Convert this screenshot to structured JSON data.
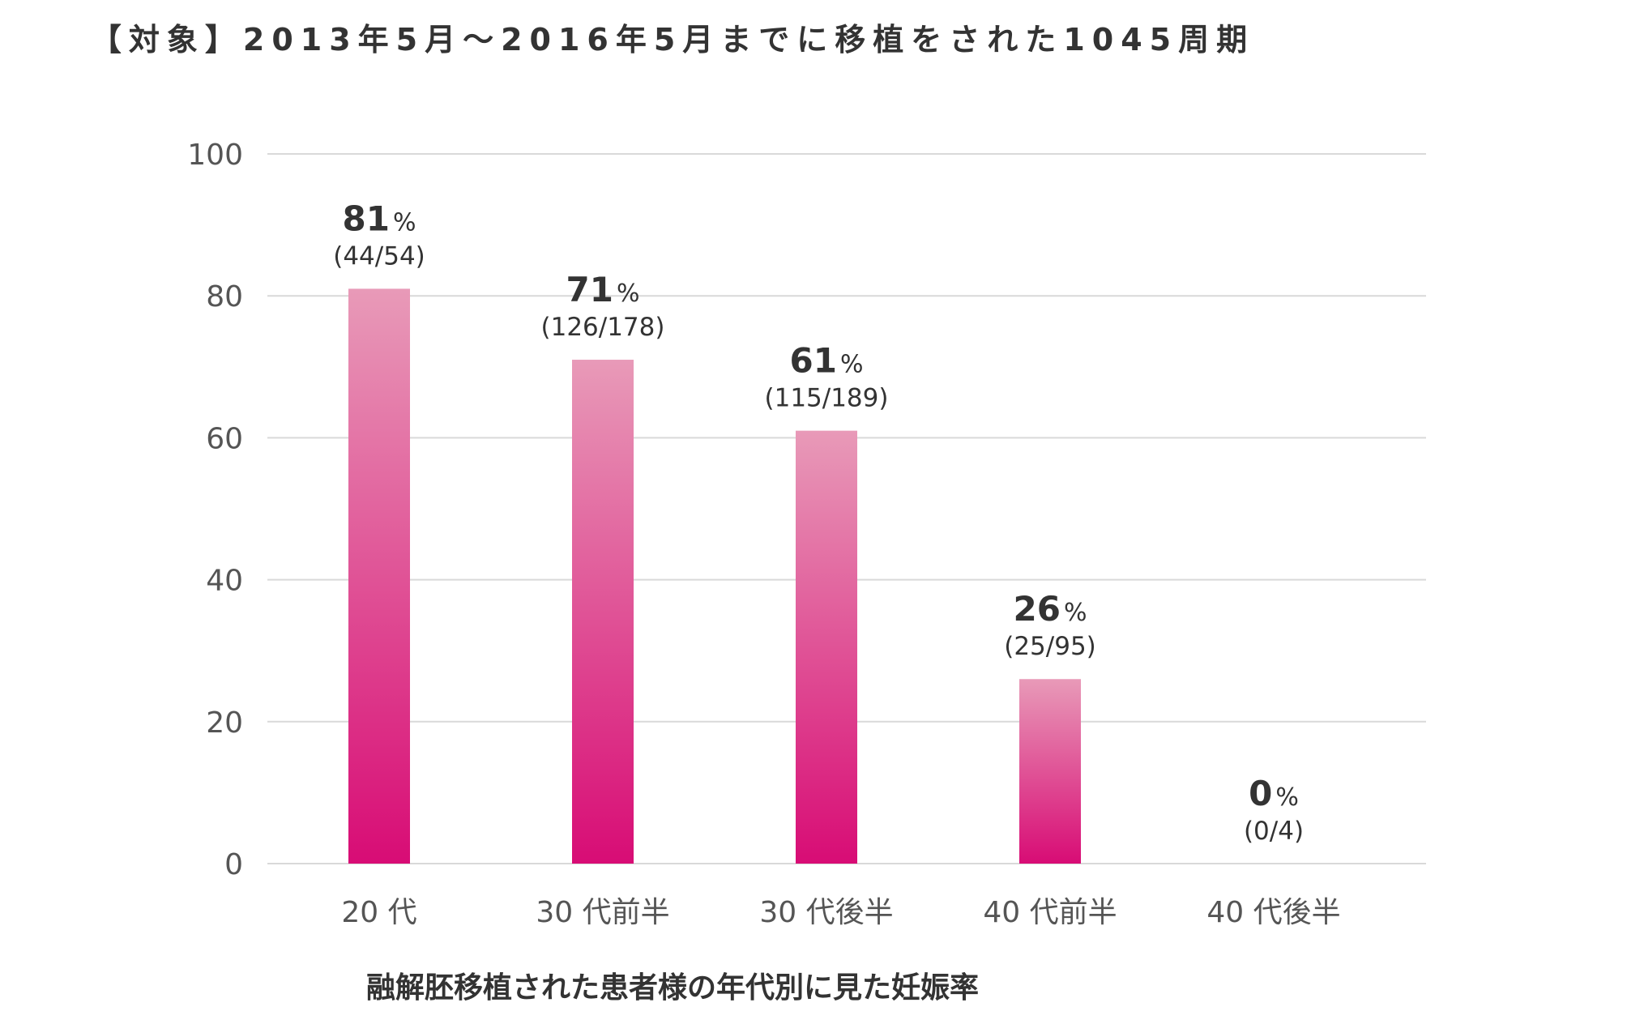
{
  "chart_data": {
    "type": "bar",
    "title": "【対象】2013年5月～2016年5月までに移植をされた1045周期",
    "xlabel": "融解胚移植された患者様の年代別に見た妊娠率",
    "ylabel": "",
    "ylim": [
      0,
      100
    ],
    "yticks": [
      0,
      20,
      40,
      60,
      80,
      100
    ],
    "grid": true,
    "categories": [
      "20 代",
      "30 代前半",
      "30 代後半",
      "40 代前半",
      "40 代後半"
    ],
    "values": [
      81,
      71,
      61,
      26,
      0
    ],
    "value_labels": [
      "81",
      "71",
      "61",
      "26",
      "0"
    ],
    "percent_sign": "%",
    "counts": [
      "(44/54)",
      "(126/178)",
      "(115/189)",
      "(25/95)",
      "(0/4)"
    ],
    "colors": {
      "bar_top": "#e89ab8",
      "bar_bottom": "#d80c75",
      "grid": "#d9d9d9",
      "text": "#333333"
    }
  }
}
